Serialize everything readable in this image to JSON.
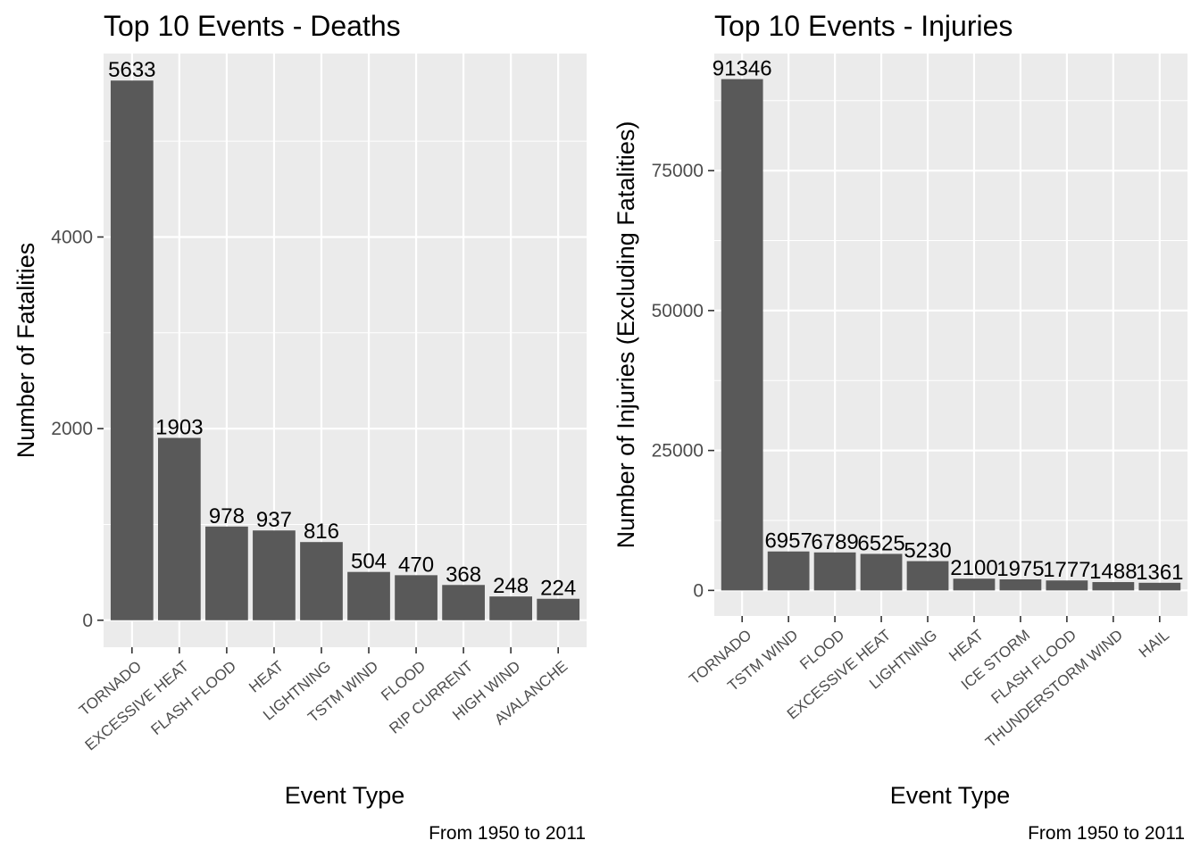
{
  "chart_data": [
    {
      "type": "bar",
      "title": "Top 10 Events - Deaths",
      "xlabel": "Event Type",
      "ylabel": "Number of Fatalities",
      "caption": "From 1950 to 2011",
      "categories": [
        "TORNADO",
        "EXCESSIVE HEAT",
        "FLASH FLOOD",
        "HEAT",
        "LIGHTNING",
        "TSTM WIND",
        "FLOOD",
        "RIP CURRENT",
        "HIGH WIND",
        "AVALANCHE"
      ],
      "values": [
        5633,
        1903,
        978,
        937,
        816,
        504,
        470,
        368,
        248,
        224
      ],
      "yticks": [
        0,
        2000,
        4000
      ],
      "ylim": [
        -281.65,
        5914.65
      ],
      "grid": true,
      "bar_color": "#595959",
      "panel_color": "#ebebeb",
      "grid_color": "#ffffff",
      "legend": "none"
    },
    {
      "type": "bar",
      "title": "Top 10 Events - Injuries",
      "xlabel": "Event Type",
      "ylabel": "Number of Injuries (Excluding Fatalities)",
      "caption": "From 1950 to 2011",
      "categories": [
        "TORNADO",
        "TSTM WIND",
        "FLOOD",
        "EXCESSIVE HEAT",
        "LIGHTNING",
        "HEAT",
        "ICE STORM",
        "FLASH FLOOD",
        "THUNDERSTORM WIND",
        "HAIL"
      ],
      "values": [
        91346,
        6957,
        6789,
        6525,
        5230,
        2100,
        1975,
        1777,
        1488,
        1361
      ],
      "yticks": [
        0,
        25000,
        50000,
        75000
      ],
      "ylim": [
        -4567.3,
        95913.3
      ],
      "grid": true,
      "bar_color": "#595959",
      "panel_color": "#ebebeb",
      "grid_color": "#ffffff",
      "legend": "none"
    }
  ]
}
